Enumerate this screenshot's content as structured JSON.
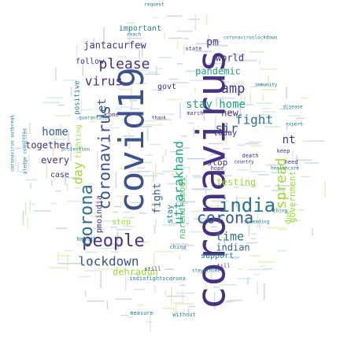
{
  "palette": {
    "purple": "#46327e",
    "indigo": "#365c8d",
    "blue": "#277f8e",
    "teal": "#1fa187",
    "green": "#4ac16d",
    "lime": "#a0da39",
    "yellow": "#e8d91c",
    "dark": "#440154"
  },
  "words": [
    {
      "text": "coronavirus",
      "color": "#46327e"
    },
    {
      "text": "covid19",
      "color": "#3b528b"
    },
    {
      "text": "india",
      "color": "#2c728e"
    },
    {
      "text": "people",
      "color": "#46327e"
    },
    {
      "text": "corona",
      "color": "#365c8d"
    },
    {
      "text": "corona",
      "color": "#2c728e"
    },
    {
      "text": "coronavirus",
      "color": "#3b528b"
    },
    {
      "text": "lockdown",
      "color": "#3b528b"
    },
    {
      "text": "please",
      "color": "#46327e"
    },
    {
      "text": "uttarakhand",
      "color": "#21a685"
    },
    {
      "text": "stay home",
      "color": "#1fa187"
    },
    {
      "text": "spread",
      "color": "#a0da39"
    },
    {
      "text": "virus",
      "color": "#46327e"
    },
    {
      "text": "fight",
      "color": "#2c728e"
    },
    {
      "text": "fight",
      "color": "#365c8d"
    },
    {
      "text": "amp",
      "color": "#46327e"
    },
    {
      "text": "sir",
      "color": "#365c8d"
    },
    {
      "text": "time",
      "color": "#2c728e"
    },
    {
      "text": "day",
      "color": "#a0da39"
    },
    {
      "text": "jantacurfew",
      "color": "#46327e"
    },
    {
      "text": "pm",
      "color": "#46327e"
    },
    {
      "text": "world",
      "color": "#46327e"
    },
    {
      "text": "pandemic",
      "color": "#1fa187"
    },
    {
      "text": "home",
      "color": "#365c8d"
    },
    {
      "text": "let",
      "color": "#365c8d"
    },
    {
      "text": "nt",
      "color": "#46327e"
    },
    {
      "text": "new",
      "color": "#46327e"
    },
    {
      "text": "dehradun",
      "color": "#a0da39"
    },
    {
      "text": "testing",
      "color": "#a0da39"
    },
    {
      "text": "indian",
      "color": "#365c8d"
    },
    {
      "text": "government",
      "color": "#a0da39"
    },
    {
      "text": "narendramodi",
      "color": "#4ac16d"
    },
    {
      "text": "stay",
      "color": "#277f8e"
    },
    {
      "text": "together",
      "color": "#46327e"
    },
    {
      "text": "every",
      "color": "#46327e"
    },
    {
      "text": "today",
      "color": "#46327e"
    },
    {
      "text": "stop",
      "color": "#46327e"
    },
    {
      "text": "pmoindia",
      "color": "#46327e"
    },
    {
      "text": "support",
      "color": "#277f8e"
    },
    {
      "text": "govt",
      "color": "#46327e"
    },
    {
      "text": "follow",
      "color": "#46327e"
    },
    {
      "text": "important",
      "color": "#277f8e"
    },
    {
      "text": "case",
      "color": "#46327e"
    },
    {
      "text": "due",
      "color": "#a0da39"
    },
    {
      "text": "step",
      "color": "#a0da39"
    },
    {
      "text": "positive",
      "color": "#277f8e"
    },
    {
      "text": "fighting",
      "color": "#a0da39"
    },
    {
      "text": "state",
      "color": "#46327e"
    },
    {
      "text": "china",
      "color": "#277f8e"
    },
    {
      "text": "death",
      "color": "#46327e"
    },
    {
      "text": "keep",
      "color": "#46327e"
    },
    {
      "text": "need",
      "color": "#46327e"
    },
    {
      "text": "hope",
      "color": "#46327e"
    },
    {
      "text": "march",
      "color": "#46327e"
    },
    {
      "text": "health",
      "color": "#277f8e"
    },
    {
      "text": "come",
      "color": "#46327e"
    },
    {
      "text": "still",
      "color": "#46327e"
    },
    {
      "text": "till",
      "color": "#46327e"
    },
    {
      "text": "measure",
      "color": "#277f8e"
    },
    {
      "text": "without",
      "color": "#277f8e"
    },
    {
      "text": "request",
      "color": "#277f8e"
    },
    {
      "text": "indiafightscorona",
      "color": "#277f8e"
    },
    {
      "text": "coronaviruslockdown",
      "color": "#277f8e"
    },
    {
      "text": "healthcare",
      "color": "#277f8e"
    },
    {
      "text": "expert",
      "color": "#277f8e"
    },
    {
      "text": "quarantine",
      "color": "#277f8e"
    },
    {
      "text": "stayathome",
      "color": "#277f8e"
    },
    {
      "text": "spreading",
      "color": "#277f8e"
    },
    {
      "text": "country",
      "color": "#46327e"
    },
    {
      "text": "pledge committed",
      "color": "#277f8e"
    },
    {
      "text": "coronavirus outbreak",
      "color": "#277f8e"
    },
    {
      "text": "reach",
      "color": "#277f8e"
    },
    {
      "text": "immunity",
      "color": "#277f8e"
    },
    {
      "text": "thing",
      "color": "#277f8e"
    },
    {
      "text": "disease",
      "color": "#277f8e"
    },
    {
      "text": "thank",
      "color": "#46327e"
    },
    {
      "text": "protection",
      "color": "#277f8e"
    }
  ]
}
